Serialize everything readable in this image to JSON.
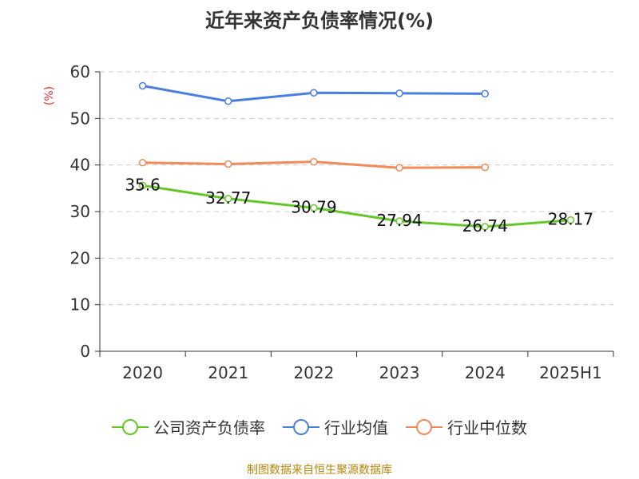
{
  "title": "近年来资产负债率情况(%)",
  "source_note": "制图数据来自恒生聚源数据库",
  "colors": {
    "company": "#66c72a",
    "industry_avg": "#4a7fde",
    "industry_median": "#f08c5a",
    "grid": "#cccccc",
    "axis": "#333333"
  },
  "chart_data": {
    "type": "line",
    "title": "近年来资产负债率情况(%)",
    "ylabel": "(%)",
    "xlabel": "",
    "categories": [
      "2020",
      "2021",
      "2022",
      "2023",
      "2024",
      "2025H1"
    ],
    "ylim": [
      0,
      60
    ],
    "yticks": [
      0,
      10,
      20,
      30,
      40,
      50,
      60
    ],
    "grid": true,
    "legend_position": "bottom",
    "series": [
      {
        "name": "公司资产负债率",
        "color": "#66c72a",
        "values": [
          35.6,
          32.77,
          30.79,
          27.94,
          26.74,
          28.17
        ],
        "show_labels": true
      },
      {
        "name": "行业均值",
        "color": "#4a7fde",
        "values": [
          57.0,
          53.7,
          55.5,
          55.4,
          55.3,
          null
        ],
        "show_labels": false
      },
      {
        "name": "行业中位数",
        "color": "#f08c5a",
        "values": [
          40.5,
          40.2,
          40.7,
          39.4,
          39.5,
          null
        ],
        "show_labels": false
      }
    ]
  },
  "legend": [
    {
      "label": "公司资产负债率",
      "color": "#66c72a"
    },
    {
      "label": "行业均值",
      "color": "#4a7fde"
    },
    {
      "label": "行业中位数",
      "color": "#f08c5a"
    }
  ]
}
